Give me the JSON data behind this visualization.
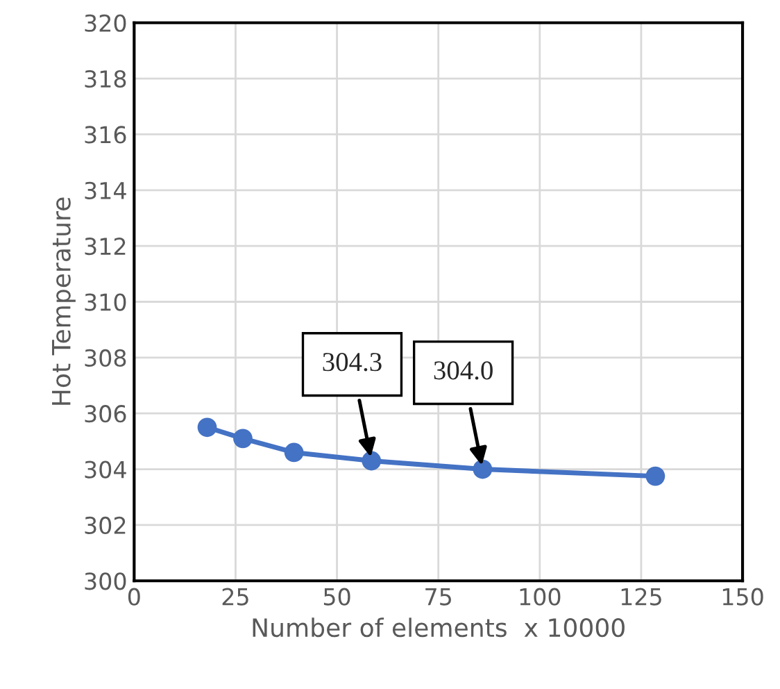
{
  "chart_data": {
    "type": "line",
    "xlabel": "Number of elements  x 10000",
    "ylabel": "Hot Temperature",
    "x": [
      18,
      26.8,
      39.4,
      58.5,
      85.9,
      128.5
    ],
    "series": [
      {
        "color": "#4472c4",
        "values": [
          305.5,
          305.1,
          304.6,
          304.3,
          304.0,
          303.75
        ]
      }
    ],
    "xlim": [
      0,
      150
    ],
    "xticks": [
      0,
      25,
      50,
      75,
      100,
      125,
      150
    ],
    "ylim": [
      300,
      320
    ],
    "yticks": [
      300,
      302,
      304,
      306,
      308,
      310,
      312,
      314,
      316,
      318,
      320
    ],
    "grid": true,
    "marker": "circle",
    "line_style": "solid",
    "legend": false,
    "annotations": [
      {
        "text": "304.3",
        "x": 58.5,
        "y": 304.3
      },
      {
        "text": "304.0",
        "x": 85.9,
        "y": 304.0
      }
    ]
  }
}
